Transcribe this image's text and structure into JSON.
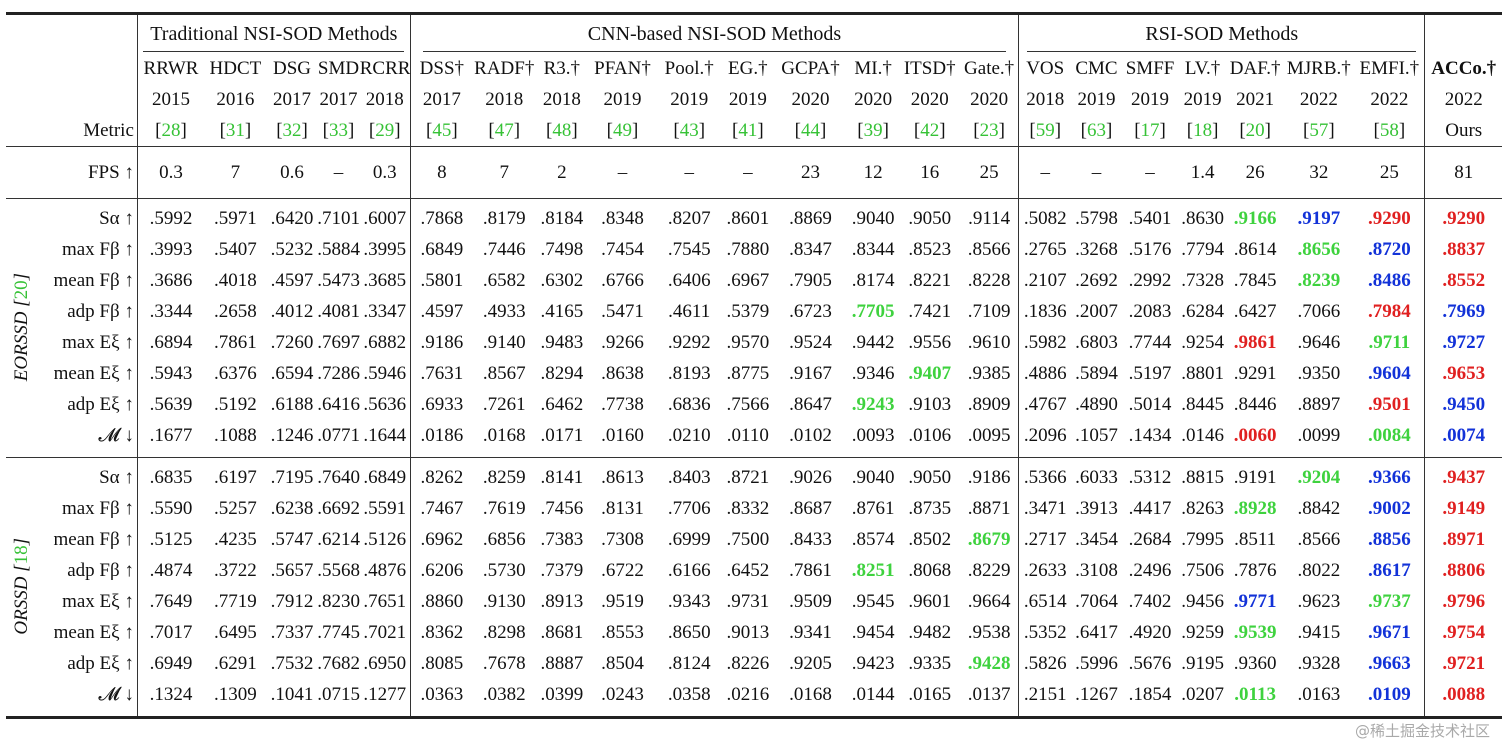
{
  "groups": [
    {
      "label": "Traditional NSI-SOD Methods",
      "span": 5
    },
    {
      "label": "CNN-based NSI-SOD Methods",
      "span": 10
    },
    {
      "label": "RSI-SOD Methods",
      "span": 7
    }
  ],
  "metric_header": "Metric",
  "methods": [
    {
      "name": "RRWR",
      "year": "2015",
      "ref": "28"
    },
    {
      "name": "HDCT",
      "year": "2016",
      "ref": "31"
    },
    {
      "name": "DSG",
      "year": "2017",
      "ref": "32"
    },
    {
      "name": "SMD",
      "year": "2017",
      "ref": "33"
    },
    {
      "name": "RCRR",
      "year": "2018",
      "ref": "29"
    },
    {
      "name": "DSS†",
      "year": "2017",
      "ref": "45"
    },
    {
      "name": "RADF†",
      "year": "2018",
      "ref": "47"
    },
    {
      "name": "R3.†",
      "year": "2018",
      "ref": "48"
    },
    {
      "name": "PFAN†",
      "year": "2019",
      "ref": "49"
    },
    {
      "name": "Pool.†",
      "year": "2019",
      "ref": "43"
    },
    {
      "name": "EG.†",
      "year": "2019",
      "ref": "41"
    },
    {
      "name": "GCPA†",
      "year": "2020",
      "ref": "44"
    },
    {
      "name": "MI.†",
      "year": "2020",
      "ref": "39"
    },
    {
      "name": "ITSD†",
      "year": "2020",
      "ref": "42"
    },
    {
      "name": "Gate.†",
      "year": "2020",
      "ref": "23"
    },
    {
      "name": "VOS",
      "year": "2018",
      "ref": "59"
    },
    {
      "name": "CMC",
      "year": "2019",
      "ref": "63"
    },
    {
      "name": "SMFF",
      "year": "2019",
      "ref": "17"
    },
    {
      "name": "LV.†",
      "year": "2019",
      "ref": "18"
    },
    {
      "name": "DAF.†",
      "year": "2021",
      "ref": "20"
    },
    {
      "name": "MJRB.†",
      "year": "2022",
      "ref": "57"
    },
    {
      "name": "EMFI.†",
      "year": "2022",
      "ref": "58"
    }
  ],
  "ours": {
    "name": "ACCo.†",
    "year": "2022",
    "label": "Ours"
  },
  "fps": {
    "label": "FPS ↑",
    "values": [
      "0.3",
      "7",
      "0.6",
      "–",
      "0.3",
      "8",
      "7",
      "2",
      "–",
      "–",
      "–",
      "23",
      "12",
      "16",
      "25",
      "–",
      "–",
      "–",
      "1.4",
      "26",
      "32",
      "25"
    ],
    "ours": "81"
  },
  "datasets": [
    {
      "name": "EORSSD",
      "ref": "20",
      "rows": [
        {
          "metric": "Sα ↑",
          "values": [
            ".5992",
            ".5971",
            ".6420",
            ".7101",
            ".6007",
            ".7868",
            ".8179",
            ".8184",
            ".8348",
            ".8207",
            ".8601",
            ".8869",
            ".9040",
            ".9050",
            ".9114",
            ".5082",
            ".5798",
            ".5401",
            ".8630",
            ".9166",
            ".9197",
            ".9290"
          ],
          "ours": ".9290"
        },
        {
          "metric": "max Fβ ↑",
          "values": [
            ".3993",
            ".5407",
            ".5232",
            ".5884",
            ".3995",
            ".6849",
            ".7446",
            ".7498",
            ".7454",
            ".7545",
            ".7880",
            ".8347",
            ".8344",
            ".8523",
            ".8566",
            ".2765",
            ".3268",
            ".5176",
            ".7794",
            ".8614",
            ".8656",
            ".8720"
          ],
          "ours": ".8837"
        },
        {
          "metric": "mean Fβ ↑",
          "values": [
            ".3686",
            ".4018",
            ".4597",
            ".5473",
            ".3685",
            ".5801",
            ".6582",
            ".6302",
            ".6766",
            ".6406",
            ".6967",
            ".7905",
            ".8174",
            ".8221",
            ".8228",
            ".2107",
            ".2692",
            ".2992",
            ".7328",
            ".7845",
            ".8239",
            ".8486"
          ],
          "ours": ".8552"
        },
        {
          "metric": "adp Fβ ↑",
          "values": [
            ".3344",
            ".2658",
            ".4012",
            ".4081",
            ".3347",
            ".4597",
            ".4933",
            ".4165",
            ".5471",
            ".4611",
            ".5379",
            ".6723",
            ".7705",
            ".7421",
            ".7109",
            ".1836",
            ".2007",
            ".2083",
            ".6284",
            ".6427",
            ".7066",
            ".7984"
          ],
          "ours": ".7969"
        },
        {
          "metric": "max Eξ ↑",
          "values": [
            ".6894",
            ".7861",
            ".7260",
            ".7697",
            ".6882",
            ".9186",
            ".9140",
            ".9483",
            ".9266",
            ".9292",
            ".9570",
            ".9524",
            ".9442",
            ".9556",
            ".9610",
            ".5982",
            ".6803",
            ".7744",
            ".9254",
            ".9861",
            ".9646",
            ".9711"
          ],
          "ours": ".9727"
        },
        {
          "metric": "mean Eξ ↑",
          "values": [
            ".5943",
            ".6376",
            ".6594",
            ".7286",
            ".5946",
            ".7631",
            ".8567",
            ".8294",
            ".8638",
            ".8193",
            ".8775",
            ".9167",
            ".9346",
            ".9407",
            ".9385",
            ".4886",
            ".5894",
            ".5197",
            ".8801",
            ".9291",
            ".9350",
            ".9604"
          ],
          "ours": ".9653"
        },
        {
          "metric": "adp Eξ ↑",
          "values": [
            ".5639",
            ".5192",
            ".6188",
            ".6416",
            ".5636",
            ".6933",
            ".7261",
            ".6462",
            ".7738",
            ".6836",
            ".7566",
            ".8647",
            ".9243",
            ".9103",
            ".8909",
            ".4767",
            ".4890",
            ".5014",
            ".8445",
            ".8446",
            ".8897",
            ".9501"
          ],
          "ours": ".9450"
        },
        {
          "metric": "𝓜 ↓",
          "values": [
            ".1677",
            ".1088",
            ".1246",
            ".0771",
            ".1644",
            ".0186",
            ".0168",
            ".0171",
            ".0160",
            ".0210",
            ".0110",
            ".0102",
            ".0093",
            ".0106",
            ".0095",
            ".2096",
            ".1057",
            ".1434",
            ".0146",
            ".0060",
            ".0099",
            ".0084"
          ],
          "ours": ".0074"
        }
      ],
      "hl": [
        {
          "19": "green",
          "20": "blue",
          "21": "red",
          "ours": "red"
        },
        {
          "20": "green",
          "21": "blue",
          "ours": "red"
        },
        {
          "20": "green",
          "21": "blue",
          "ours": "red"
        },
        {
          "12": "green",
          "21": "red",
          "ours": "blue"
        },
        {
          "19": "red",
          "21": "green",
          "ours": "blue"
        },
        {
          "13": "green",
          "21": "blue",
          "ours": "red"
        },
        {
          "12": "green",
          "21": "red",
          "ours": "blue"
        },
        {
          "19": "red",
          "21": "green",
          "ours": "blue"
        }
      ]
    },
    {
      "name": "ORSSD",
      "ref": "18",
      "rows": [
        {
          "metric": "Sα ↑",
          "values": [
            ".6835",
            ".6197",
            ".7195",
            ".7640",
            ".6849",
            ".8262",
            ".8259",
            ".8141",
            ".8613",
            ".8403",
            ".8721",
            ".9026",
            ".9040",
            ".9050",
            ".9186",
            ".5366",
            ".6033",
            ".5312",
            ".8815",
            ".9191",
            ".9204",
            ".9366"
          ],
          "ours": ".9437"
        },
        {
          "metric": "max Fβ ↑",
          "values": [
            ".5590",
            ".5257",
            ".6238",
            ".6692",
            ".5591",
            ".7467",
            ".7619",
            ".7456",
            ".8131",
            ".7706",
            ".8332",
            ".8687",
            ".8761",
            ".8735",
            ".8871",
            ".3471",
            ".3913",
            ".4417",
            ".8263",
            ".8928",
            ".8842",
            ".9002"
          ],
          "ours": ".9149"
        },
        {
          "metric": "mean Fβ ↑",
          "values": [
            ".5125",
            ".4235",
            ".5747",
            ".6214",
            ".5126",
            ".6962",
            ".6856",
            ".7383",
            ".7308",
            ".6999",
            ".7500",
            ".8433",
            ".8574",
            ".8502",
            ".8679",
            ".2717",
            ".3454",
            ".2684",
            ".7995",
            ".8511",
            ".8566",
            ".8856"
          ],
          "ours": ".8971"
        },
        {
          "metric": "adp Fβ ↑",
          "values": [
            ".4874",
            ".3722",
            ".5657",
            ".5568",
            ".4876",
            ".6206",
            ".5730",
            ".7379",
            ".6722",
            ".6166",
            ".6452",
            ".7861",
            ".8251",
            ".8068",
            ".8229",
            ".2633",
            ".3108",
            ".2496",
            ".7506",
            ".7876",
            ".8022",
            ".8617"
          ],
          "ours": ".8806"
        },
        {
          "metric": "max Eξ ↑",
          "values": [
            ".7649",
            ".7719",
            ".7912",
            ".8230",
            ".7651",
            ".8860",
            ".9130",
            ".8913",
            ".9519",
            ".9343",
            ".9731",
            ".9509",
            ".9545",
            ".9601",
            ".9664",
            ".6514",
            ".7064",
            ".7402",
            ".9456",
            ".9771",
            ".9623",
            ".9737"
          ],
          "ours": ".9796"
        },
        {
          "metric": "mean Eξ ↑",
          "values": [
            ".7017",
            ".6495",
            ".7337",
            ".7745",
            ".7021",
            ".8362",
            ".8298",
            ".8681",
            ".8553",
            ".8650",
            ".9013",
            ".9341",
            ".9454",
            ".9482",
            ".9538",
            ".5352",
            ".6417",
            ".4920",
            ".9259",
            ".9539",
            ".9415",
            ".9671"
          ],
          "ours": ".9754"
        },
        {
          "metric": "adp Eξ ↑",
          "values": [
            ".6949",
            ".6291",
            ".7532",
            ".7682",
            ".6950",
            ".8085",
            ".7678",
            ".8887",
            ".8504",
            ".8124",
            ".8226",
            ".9205",
            ".9423",
            ".9335",
            ".9428",
            ".5826",
            ".5996",
            ".5676",
            ".9195",
            ".9360",
            ".9328",
            ".9663"
          ],
          "ours": ".9721"
        },
        {
          "metric": "𝓜 ↓",
          "values": [
            ".1324",
            ".1309",
            ".1041",
            ".0715",
            ".1277",
            ".0363",
            ".0382",
            ".0399",
            ".0243",
            ".0358",
            ".0216",
            ".0168",
            ".0144",
            ".0165",
            ".0137",
            ".2151",
            ".1267",
            ".1854",
            ".0207",
            ".0113",
            ".0163",
            ".0109"
          ],
          "ours": ".0088"
        }
      ],
      "hl": [
        {
          "20": "green",
          "21": "blue",
          "ours": "red"
        },
        {
          "19": "green",
          "21": "blue",
          "ours": "red"
        },
        {
          "14": "green",
          "21": "blue",
          "ours": "red"
        },
        {
          "12": "green",
          "21": "blue",
          "ours": "red"
        },
        {
          "19": "blue",
          "21": "green",
          "ours": "red"
        },
        {
          "19": "green",
          "21": "blue",
          "ours": "red"
        },
        {
          "14": "green",
          "21": "blue",
          "ours": "red"
        },
        {
          "19": "green",
          "21": "blue",
          "ours": "red"
        }
      ]
    }
  ],
  "colors": {
    "red": "#e02020",
    "blue": "#1232d8",
    "green": "#3ed23e",
    "ref": "#36c236"
  },
  "watermark": "@稀土掘金技术社区"
}
